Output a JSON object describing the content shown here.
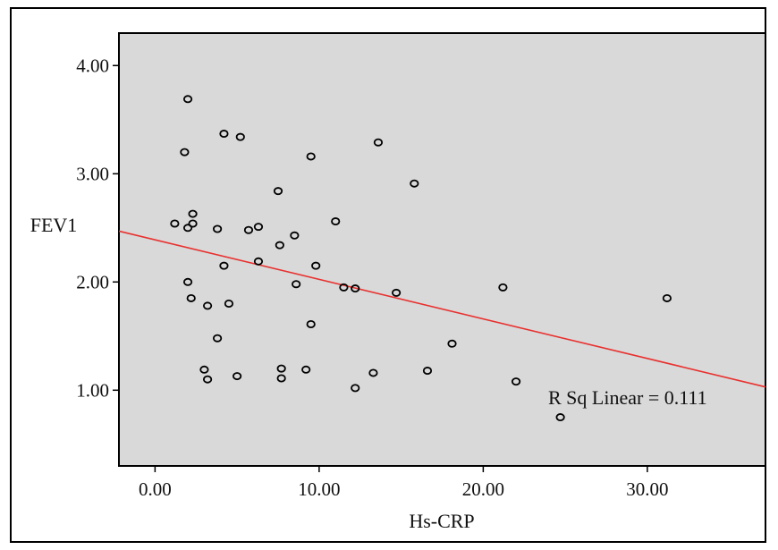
{
  "chart_data": {
    "type": "scatter",
    "title": "",
    "xlabel": "Hs-CRP",
    "ylabel": "FEV1",
    "xlim": [
      -2.2,
      37.2
    ],
    "ylim": [
      0.3,
      4.3
    ],
    "x_ticks": [
      0,
      10,
      20,
      30
    ],
    "x_tick_labels": [
      "0.00",
      "10.00",
      "20.00",
      "30.00"
    ],
    "y_ticks": [
      1,
      2,
      3,
      4
    ],
    "y_tick_labels": [
      "1.00",
      "2.00",
      "3.00",
      "4.00"
    ],
    "grid": false,
    "plot_background": "#d9d9d9",
    "marker": "open-circle",
    "fit_line": {
      "type": "linear",
      "color": "#e8312f",
      "x": [
        -2.2,
        37.2
      ],
      "y": [
        2.47,
        1.03
      ]
    },
    "annotation": "R Sq Linear = 0.111",
    "points": [
      {
        "x": 2.0,
        "y": 3.69
      },
      {
        "x": 4.2,
        "y": 3.37
      },
      {
        "x": 5.2,
        "y": 3.34
      },
      {
        "x": 1.8,
        "y": 3.2
      },
      {
        "x": 9.5,
        "y": 3.16
      },
      {
        "x": 13.6,
        "y": 3.29
      },
      {
        "x": 15.8,
        "y": 2.91
      },
      {
        "x": 7.5,
        "y": 2.84
      },
      {
        "x": 2.3,
        "y": 2.63
      },
      {
        "x": 1.2,
        "y": 2.54
      },
      {
        "x": 2.3,
        "y": 2.54
      },
      {
        "x": 2.0,
        "y": 2.5
      },
      {
        "x": 3.8,
        "y": 2.49
      },
      {
        "x": 5.7,
        "y": 2.48
      },
      {
        "x": 6.3,
        "y": 2.51
      },
      {
        "x": 11.0,
        "y": 2.56
      },
      {
        "x": 8.5,
        "y": 2.43
      },
      {
        "x": 7.6,
        "y": 2.34
      },
      {
        "x": 6.3,
        "y": 2.19
      },
      {
        "x": 4.2,
        "y": 2.15
      },
      {
        "x": 9.8,
        "y": 2.15
      },
      {
        "x": 2.0,
        "y": 2.0
      },
      {
        "x": 8.6,
        "y": 1.98
      },
      {
        "x": 11.5,
        "y": 1.95
      },
      {
        "x": 12.2,
        "y": 1.94
      },
      {
        "x": 14.7,
        "y": 1.9
      },
      {
        "x": 21.2,
        "y": 1.95
      },
      {
        "x": 31.2,
        "y": 1.85
      },
      {
        "x": 2.2,
        "y": 1.85
      },
      {
        "x": 4.5,
        "y": 1.8
      },
      {
        "x": 3.2,
        "y": 1.78
      },
      {
        "x": 9.5,
        "y": 1.61
      },
      {
        "x": 3.8,
        "y": 1.48
      },
      {
        "x": 18.1,
        "y": 1.43
      },
      {
        "x": 3.0,
        "y": 1.19
      },
      {
        "x": 7.7,
        "y": 1.2
      },
      {
        "x": 9.2,
        "y": 1.19
      },
      {
        "x": 16.6,
        "y": 1.18
      },
      {
        "x": 13.3,
        "y": 1.16
      },
      {
        "x": 5.0,
        "y": 1.13
      },
      {
        "x": 3.2,
        "y": 1.1
      },
      {
        "x": 7.7,
        "y": 1.11
      },
      {
        "x": 22.0,
        "y": 1.08
      },
      {
        "x": 12.2,
        "y": 1.02
      },
      {
        "x": 24.7,
        "y": 0.75
      }
    ]
  }
}
